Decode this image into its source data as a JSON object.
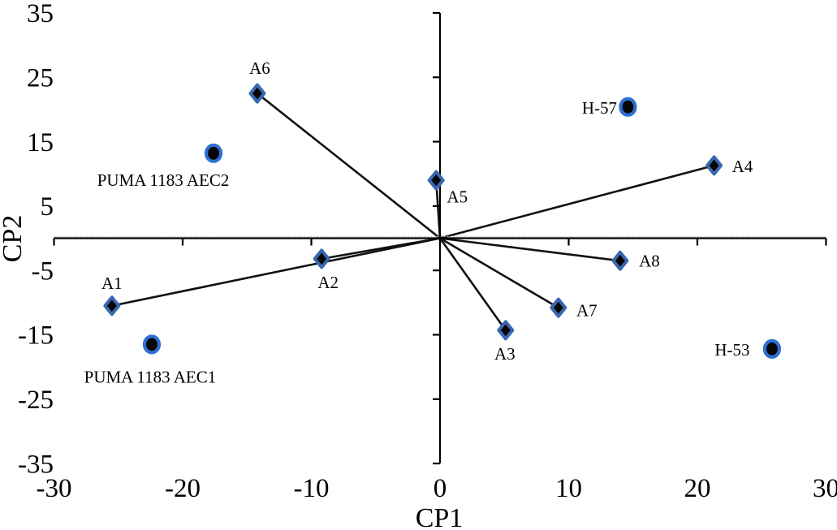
{
  "chart_data": {
    "type": "scatter",
    "subtype": "pca-biplot",
    "title": "",
    "xlabel": "CP1",
    "ylabel": "CP2",
    "xlim": [
      -30,
      30
    ],
    "ylim": [
      -35,
      35
    ],
    "x_ticks": [
      -30,
      -20,
      -10,
      0,
      10,
      20,
      30
    ],
    "y_ticks": [
      -35,
      -25,
      -15,
      -5,
      5,
      15,
      25,
      35
    ],
    "grid": false,
    "legend": "none",
    "colors": {
      "diamond_fill": "#060606",
      "diamond_stroke": "#3A67B1",
      "circle_fill": "#050505",
      "circle_stroke": "#2E6FD4",
      "vector_line": "#111111",
      "axis_line": "#000000",
      "axis_dotted_shadow": "#c0c0c0",
      "text": "#000000"
    },
    "series": [
      {
        "name": "variable-vectors",
        "marker": "diamond",
        "vectors_from_origin": true,
        "points": [
          {
            "label": "A1",
            "x": -25.5,
            "y": -10.5,
            "label_dx": 0,
            "label_dy": -28
          },
          {
            "label": "A2",
            "x": -9.2,
            "y": -3.2,
            "label_dx": 8,
            "label_dy": 29
          },
          {
            "label": "A3",
            "x": 5.1,
            "y": -14.3,
            "label_dx": -1,
            "label_dy": 29
          },
          {
            "label": "A4",
            "x": 21.3,
            "y": 11.3,
            "label_dx": 35,
            "label_dy": 1
          },
          {
            "label": "A5",
            "x": -0.3,
            "y": 9.0,
            "label_dx": 26,
            "label_dy": 20
          },
          {
            "label": "A6",
            "x": -14.2,
            "y": 22.5,
            "label_dx": 3,
            "label_dy": -31
          },
          {
            "label": "A7",
            "x": 9.2,
            "y": -10.8,
            "label_dx": 35,
            "label_dy": 3
          },
          {
            "label": "A8",
            "x": 14.0,
            "y": -3.5,
            "label_dx": 36,
            "label_dy": 0
          }
        ]
      },
      {
        "name": "genotype-points",
        "marker": "circle",
        "vectors_from_origin": false,
        "points": [
          {
            "label": "PUMA 1183 AEC2",
            "x": -17.6,
            "y": 13.2,
            "label_dx": -62,
            "label_dy": 33
          },
          {
            "label": "PUMA 1183 AEC1",
            "x": -22.4,
            "y": -16.5,
            "label_dx": -2,
            "label_dy": 40
          },
          {
            "label": "H-57",
            "x": 14.6,
            "y": 20.4,
            "label_dx": -35,
            "label_dy": 1
          },
          {
            "label": "H-53",
            "x": 25.8,
            "y": -17.2,
            "label_dx": -49,
            "label_dy": 1
          }
        ]
      }
    ]
  }
}
